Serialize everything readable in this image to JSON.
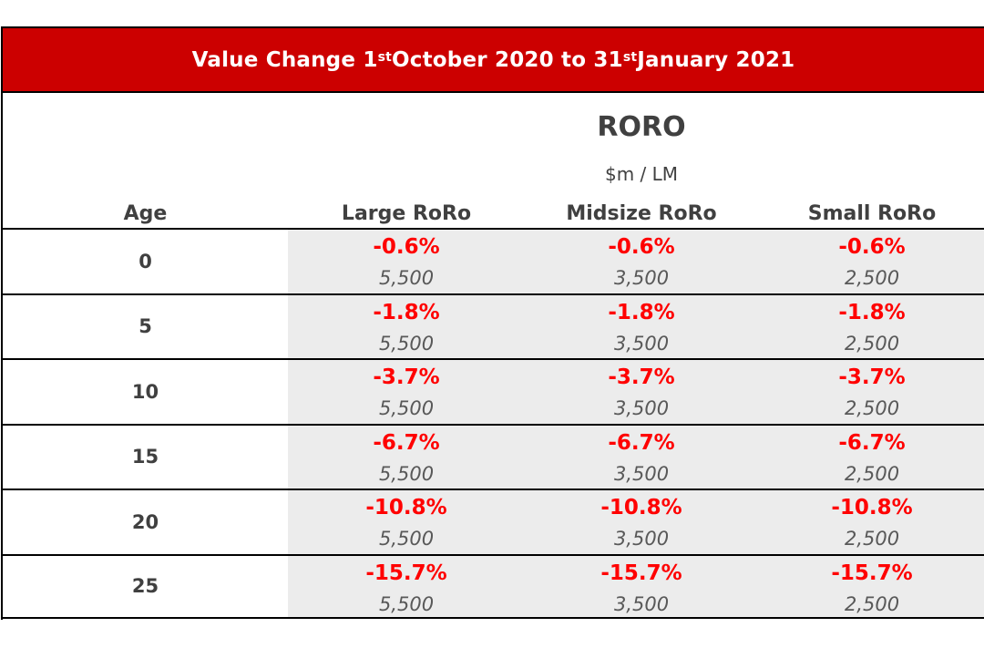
{
  "title": {
    "part1": "Value Change 1",
    "sup1": "st",
    "part2": " October 2020 to 31",
    "sup2": "st",
    "part3": " January 2021"
  },
  "group_title": "RORO",
  "unit": "$m / LM",
  "columns": {
    "age": "Age",
    "large": "Large RoRo",
    "midsize": "Midsize RoRo",
    "small": "Small RoRo"
  },
  "rows": [
    {
      "age": "0",
      "large_pct": "-0.6%",
      "large_val": "5,500",
      "mid_pct": "-0.6%",
      "mid_val": "3,500",
      "small_pct": "-0.6%",
      "small_val": "2,500"
    },
    {
      "age": "5",
      "large_pct": "-1.8%",
      "large_val": "5,500",
      "mid_pct": "-1.8%",
      "mid_val": "3,500",
      "small_pct": "-1.8%",
      "small_val": "2,500"
    },
    {
      "age": "10",
      "large_pct": "-3.7%",
      "large_val": "5,500",
      "mid_pct": "-3.7%",
      "mid_val": "3,500",
      "small_pct": "-3.7%",
      "small_val": "2,500"
    },
    {
      "age": "15",
      "large_pct": "-6.7%",
      "large_val": "5,500",
      "mid_pct": "-6.7%",
      "mid_val": "3,500",
      "small_pct": "-6.7%",
      "small_val": "2,500"
    },
    {
      "age": "20",
      "large_pct": "-10.8%",
      "large_val": "5,500",
      "mid_pct": "-10.8%",
      "mid_val": "3,500",
      "small_pct": "-10.8%",
      "small_val": "2,500"
    },
    {
      "age": "25",
      "large_pct": "-15.7%",
      "large_val": "5,500",
      "mid_pct": "-15.7%",
      "mid_val": "3,500",
      "small_pct": "-15.7%",
      "small_val": "2,500"
    }
  ],
  "colors": {
    "title_bg": "#cc0000",
    "negative": "#ff0000",
    "shade": "#ececec"
  }
}
